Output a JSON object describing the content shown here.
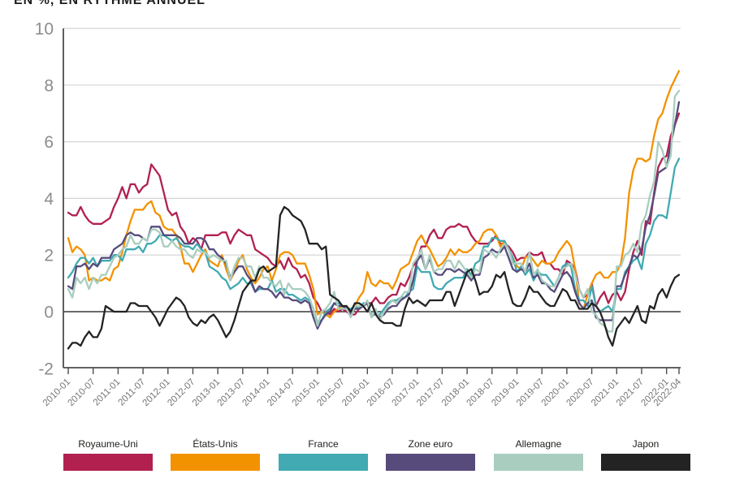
{
  "title": "EN %, EN RYTHME ANNUEL",
  "y_axis": {
    "tick_labels": [
      "10",
      "8",
      "6",
      "4",
      "2",
      "0",
      "-2"
    ],
    "tick_values": [
      10,
      8,
      6,
      4,
      2,
      0,
      -2
    ]
  },
  "x_axis": {
    "tick_labels": [
      "2010-01",
      "2010-07",
      "2011-01",
      "2011-07",
      "2012-01",
      "2012-07",
      "2013-01",
      "2013-07",
      "2014-01",
      "2014-07",
      "2015-01",
      "2015-07",
      "2016-01",
      "2016-07",
      "2017-01",
      "2017-07",
      "2018-01",
      "2018-07",
      "2019-01",
      "2019-07",
      "2020-01",
      "2020-07",
      "2021-01",
      "2021-07",
      "2022-01",
      "2022-04"
    ],
    "tick_month_indices": [
      0,
      6,
      12,
      18,
      24,
      30,
      36,
      42,
      48,
      54,
      60,
      66,
      72,
      78,
      84,
      90,
      96,
      102,
      108,
      114,
      120,
      126,
      132,
      138,
      144,
      147
    ]
  },
  "legend": {
    "items": [
      {
        "label": "Royaume-Uni",
        "color": "#b22050"
      },
      {
        "label": "États-Unis",
        "color": "#f39200"
      },
      {
        "label": "France",
        "color": "#41aab2"
      },
      {
        "label": "Zone euro",
        "color": "#574b7c"
      },
      {
        "label": "Allemagne",
        "color": "#a9cdbf"
      },
      {
        "label": "Japon",
        "color": "#232323"
      }
    ]
  },
  "colors": {
    "grid": "#d4d4d4",
    "zero_line": "#383838",
    "axis": "#4d4d4d",
    "y_tick_text": "#8c8c8c",
    "x_tick_text": "#767676",
    "title_text": "#1d1d1b"
  },
  "chart_data": {
    "type": "line",
    "title": "EN %, EN RYTHME ANNUEL",
    "x_start": "2010-01",
    "x_end": "2022-04",
    "x_frequency": "monthly",
    "n_points": 148,
    "ylim": [
      -2,
      10
    ],
    "grid": "horizontal",
    "legend_position": "bottom",
    "series": [
      {
        "name": "Royaume-Uni",
        "color": "#b22050",
        "values": [
          3.5,
          3.4,
          3.4,
          3.7,
          3.4,
          3.2,
          3.1,
          3.1,
          3.1,
          3.2,
          3.3,
          3.7,
          4.0,
          4.4,
          4.0,
          4.5,
          4.5,
          4.2,
          4.4,
          4.5,
          5.2,
          5.0,
          4.8,
          4.2,
          3.6,
          3.4,
          3.5,
          3.0,
          2.8,
          2.4,
          2.6,
          2.5,
          2.2,
          2.7,
          2.7,
          2.7,
          2.7,
          2.8,
          2.8,
          2.4,
          2.7,
          2.9,
          2.8,
          2.7,
          2.7,
          2.2,
          2.1,
          2.0,
          1.9,
          1.7,
          1.6,
          1.8,
          1.5,
          1.9,
          1.6,
          1.5,
          1.2,
          1.3,
          1.0,
          0.5,
          0.3,
          0.0,
          0.0,
          -0.1,
          0.1,
          0.0,
          0.1,
          0.0,
          -0.1,
          -0.1,
          0.1,
          0.2,
          0.3,
          0.3,
          0.5,
          0.3,
          0.3,
          0.5,
          0.6,
          0.6,
          1.0,
          0.9,
          1.2,
          1.6,
          1.8,
          2.3,
          2.3,
          2.7,
          2.9,
          2.6,
          2.6,
          2.9,
          3.0,
          3.0,
          3.1,
          3.0,
          3.0,
          2.7,
          2.5,
          2.4,
          2.4,
          2.4,
          2.5,
          2.7,
          2.4,
          2.4,
          2.3,
          2.1,
          1.8,
          1.9,
          1.9,
          2.1,
          2.0,
          2.0,
          2.1,
          1.7,
          1.7,
          1.5,
          1.5,
          1.3,
          1.8,
          1.7,
          1.5,
          0.8,
          0.5,
          0.6,
          1.0,
          0.2,
          0.5,
          0.7,
          0.3,
          0.6,
          0.7,
          0.4,
          0.7,
          1.5,
          2.1,
          2.5,
          2.0,
          3.2,
          3.1,
          4.2,
          5.1,
          5.4,
          5.5,
          6.2,
          6.6,
          7.0
        ]
      },
      {
        "name": "États-Unis",
        "color": "#f39200",
        "values": [
          2.6,
          2.1,
          2.3,
          2.2,
          2.0,
          1.1,
          1.2,
          1.1,
          1.1,
          1.2,
          1.1,
          1.5,
          1.6,
          2.1,
          2.7,
          3.2,
          3.6,
          3.6,
          3.6,
          3.8,
          3.9,
          3.5,
          3.4,
          3.0,
          2.9,
          2.9,
          2.7,
          2.3,
          1.7,
          1.7,
          1.4,
          1.7,
          2.0,
          2.2,
          1.8,
          1.7,
          1.6,
          2.0,
          1.5,
          1.1,
          1.4,
          1.8,
          2.0,
          1.5,
          1.2,
          1.0,
          1.2,
          1.5,
          1.6,
          1.1,
          1.5,
          2.0,
          2.1,
          2.1,
          2.0,
          1.7,
          1.7,
          1.7,
          1.3,
          0.8,
          -0.1,
          0.0,
          -0.1,
          -0.2,
          0.0,
          0.1,
          0.2,
          0.2,
          0.0,
          0.2,
          0.5,
          0.7,
          1.4,
          1.0,
          0.9,
          1.1,
          1.0,
          1.0,
          0.8,
          1.1,
          1.5,
          1.6,
          1.7,
          2.1,
          2.5,
          2.7,
          2.4,
          2.2,
          1.9,
          1.6,
          1.7,
          1.9,
          2.2,
          2.0,
          2.2,
          2.1,
          2.1,
          2.2,
          2.4,
          2.5,
          2.8,
          2.9,
          2.9,
          2.7,
          2.3,
          2.5,
          2.2,
          1.9,
          1.6,
          1.5,
          1.9,
          2.0,
          1.8,
          1.6,
          1.8,
          1.7,
          1.7,
          1.8,
          2.1,
          2.3,
          2.5,
          2.3,
          1.5,
          0.3,
          0.1,
          0.6,
          1.0,
          1.3,
          1.4,
          1.2,
          1.2,
          1.4,
          1.4,
          1.7,
          2.6,
          4.2,
          5.0,
          5.4,
          5.4,
          5.3,
          5.4,
          6.2,
          6.8,
          7.0,
          7.5,
          7.9,
          8.2,
          8.5
        ]
      },
      {
        "name": "France",
        "color": "#41aab2",
        "values": [
          1.2,
          1.4,
          1.7,
          1.9,
          1.9,
          1.7,
          1.9,
          1.6,
          1.8,
          1.8,
          1.8,
          2.0,
          2.0,
          1.8,
          2.2,
          2.2,
          2.2,
          2.3,
          2.1,
          2.4,
          2.4,
          2.5,
          2.7,
          2.7,
          2.6,
          2.5,
          2.6,
          2.4,
          2.3,
          2.3,
          2.2,
          2.4,
          2.2,
          2.1,
          1.6,
          1.5,
          1.4,
          1.2,
          1.1,
          0.8,
          0.9,
          1.0,
          1.2,
          1.0,
          1.0,
          0.7,
          0.8,
          0.8,
          0.8,
          1.1,
          0.7,
          0.8,
          0.8,
          0.6,
          0.6,
          0.5,
          0.4,
          0.5,
          0.4,
          0.1,
          -0.4,
          -0.3,
          0.0,
          0.1,
          0.3,
          0.3,
          0.2,
          0.1,
          0.1,
          0.2,
          0.1,
          0.3,
          0.3,
          -0.1,
          -0.1,
          -0.1,
          0.1,
          0.3,
          0.4,
          0.4,
          0.5,
          0.5,
          0.7,
          0.8,
          1.6,
          1.4,
          1.4,
          1.4,
          0.9,
          0.8,
          0.8,
          1.0,
          1.1,
          1.2,
          1.2,
          1.2,
          1.5,
          1.3,
          1.7,
          1.8,
          2.3,
          2.3,
          2.6,
          2.6,
          2.5,
          2.5,
          2.2,
          1.9,
          1.4,
          1.6,
          1.3,
          1.5,
          1.1,
          1.4,
          1.3,
          1.3,
          1.1,
          0.9,
          1.2,
          1.6,
          1.7,
          1.6,
          0.8,
          0.4,
          0.4,
          0.2,
          0.9,
          0.2,
          0.0,
          0.1,
          0.2,
          0.0,
          0.8,
          0.8,
          1.4,
          1.6,
          1.8,
          1.9,
          1.5,
          2.4,
          2.7,
          3.2,
          3.4,
          3.4,
          3.3,
          4.2,
          5.1,
          5.4
        ]
      },
      {
        "name": "Zone euro",
        "color": "#574b7c",
        "values": [
          0.9,
          0.8,
          1.6,
          1.6,
          1.7,
          1.5,
          1.7,
          1.6,
          1.9,
          1.9,
          1.9,
          2.2,
          2.3,
          2.4,
          2.7,
          2.8,
          2.7,
          2.7,
          2.6,
          2.5,
          3.0,
          3.0,
          3.0,
          2.7,
          2.7,
          2.7,
          2.7,
          2.6,
          2.4,
          2.4,
          2.4,
          2.6,
          2.6,
          2.5,
          2.2,
          2.2,
          2.0,
          1.9,
          1.7,
          1.2,
          1.4,
          1.6,
          1.6,
          1.3,
          1.1,
          0.7,
          0.9,
          0.8,
          0.8,
          0.7,
          0.5,
          0.7,
          0.5,
          0.5,
          0.4,
          0.4,
          0.3,
          0.4,
          0.3,
          -0.2,
          -0.6,
          -0.3,
          -0.1,
          0.0,
          0.3,
          0.2,
          0.2,
          0.1,
          -0.1,
          0.1,
          0.1,
          0.2,
          0.3,
          -0.2,
          0.0,
          -0.2,
          -0.1,
          0.1,
          0.2,
          0.2,
          0.4,
          0.5,
          0.6,
          1.1,
          1.8,
          2.0,
          1.5,
          1.9,
          1.4,
          1.3,
          1.3,
          1.5,
          1.5,
          1.4,
          1.5,
          1.4,
          1.3,
          1.1,
          1.3,
          1.3,
          1.9,
          2.0,
          2.2,
          2.1,
          2.1,
          2.3,
          1.9,
          1.5,
          1.4,
          1.5,
          1.4,
          1.7,
          1.2,
          1.3,
          1.0,
          1.0,
          0.8,
          0.7,
          1.0,
          1.3,
          1.4,
          1.2,
          0.7,
          0.3,
          0.1,
          0.3,
          0.4,
          -0.2,
          -0.3,
          -0.3,
          -0.3,
          -0.3,
          0.9,
          0.9,
          1.3,
          1.6,
          2.0,
          1.9,
          2.2,
          3.0,
          3.4,
          4.1,
          4.9,
          5.0,
          5.1,
          5.9,
          6.6,
          7.4
        ]
      },
      {
        "name": "Allemagne",
        "color": "#a9cdbf",
        "values": [
          0.8,
          0.5,
          1.2,
          1.0,
          1.2,
          0.8,
          1.2,
          1.0,
          1.3,
          1.3,
          1.6,
          1.9,
          2.0,
          2.2,
          2.3,
          2.7,
          2.4,
          2.4,
          2.6,
          2.5,
          2.9,
          2.9,
          2.8,
          2.3,
          2.3,
          2.5,
          2.3,
          2.2,
          2.2,
          2.0,
          1.9,
          2.2,
          2.1,
          2.1,
          1.9,
          2.0,
          1.9,
          1.8,
          1.8,
          1.1,
          1.6,
          1.9,
          1.9,
          1.6,
          1.6,
          1.2,
          1.6,
          1.2,
          1.2,
          1.0,
          0.9,
          1.1,
          0.6,
          1.0,
          0.8,
          0.8,
          0.8,
          0.7,
          0.5,
          0.1,
          -0.5,
          0.0,
          0.1,
          0.3,
          0.7,
          0.1,
          0.1,
          0.1,
          -0.2,
          0.2,
          0.2,
          0.2,
          0.4,
          -0.2,
          0.1,
          -0.3,
          0.0,
          0.2,
          0.4,
          0.3,
          0.5,
          0.7,
          0.7,
          1.7,
          1.9,
          2.2,
          1.5,
          2.0,
          1.4,
          1.5,
          1.5,
          1.8,
          1.8,
          1.5,
          1.8,
          1.6,
          1.4,
          1.2,
          1.5,
          1.4,
          2.2,
          2.1,
          2.1,
          1.9,
          2.2,
          2.4,
          2.2,
          1.7,
          1.7,
          1.7,
          1.4,
          2.1,
          1.3,
          1.5,
          1.1,
          1.0,
          0.9,
          0.9,
          1.2,
          1.5,
          1.6,
          1.7,
          1.3,
          0.8,
          0.5,
          0.8,
          0.0,
          -0.1,
          -0.4,
          -0.5,
          -0.7,
          -0.7,
          1.6,
          1.6,
          2.0,
          2.1,
          2.4,
          2.1,
          3.1,
          3.4,
          4.1,
          4.6,
          6.0,
          5.7,
          5.1,
          5.5,
          7.6,
          7.8
        ]
      },
      {
        "name": "Japon",
        "color": "#232323",
        "values": [
          -1.3,
          -1.1,
          -1.1,
          -1.2,
          -0.9,
          -0.7,
          -0.9,
          -0.9,
          -0.6,
          0.2,
          0.1,
          0.0,
          0.0,
          0.0,
          0.0,
          0.3,
          0.3,
          0.2,
          0.2,
          0.2,
          0.0,
          -0.2,
          -0.5,
          -0.2,
          0.1,
          0.3,
          0.5,
          0.4,
          0.2,
          -0.2,
          -0.4,
          -0.5,
          -0.3,
          -0.4,
          -0.2,
          -0.1,
          -0.3,
          -0.6,
          -0.9,
          -0.7,
          -0.3,
          0.2,
          0.7,
          0.9,
          1.1,
          1.1,
          1.5,
          1.6,
          1.4,
          1.5,
          1.6,
          3.4,
          3.7,
          3.6,
          3.4,
          3.3,
          3.2,
          2.9,
          2.4,
          2.4,
          2.4,
          2.2,
          2.3,
          0.6,
          0.5,
          0.4,
          0.2,
          0.2,
          0.0,
          0.3,
          0.3,
          0.2,
          0.0,
          0.3,
          -0.1,
          -0.3,
          -0.4,
          -0.4,
          -0.4,
          -0.5,
          -0.5,
          0.1,
          0.5,
          0.3,
          0.4,
          0.3,
          0.2,
          0.4,
          0.4,
          0.4,
          0.4,
          0.7,
          0.7,
          0.2,
          0.6,
          1.0,
          1.4,
          1.5,
          1.1,
          0.6,
          0.7,
          0.7,
          0.9,
          1.3,
          1.2,
          1.4,
          0.8,
          0.3,
          0.2,
          0.2,
          0.5,
          0.9,
          0.7,
          0.7,
          0.5,
          0.3,
          0.2,
          0.2,
          0.5,
          0.8,
          0.7,
          0.4,
          0.4,
          0.1,
          0.1,
          0.1,
          0.3,
          0.2,
          0.0,
          -0.4,
          -0.9,
          -1.2,
          -0.6,
          -0.4,
          -0.2,
          -0.4,
          -0.1,
          0.2,
          -0.3,
          -0.4,
          0.2,
          0.1,
          0.6,
          0.8,
          0.5,
          0.9,
          1.2,
          1.3
        ]
      }
    ]
  }
}
